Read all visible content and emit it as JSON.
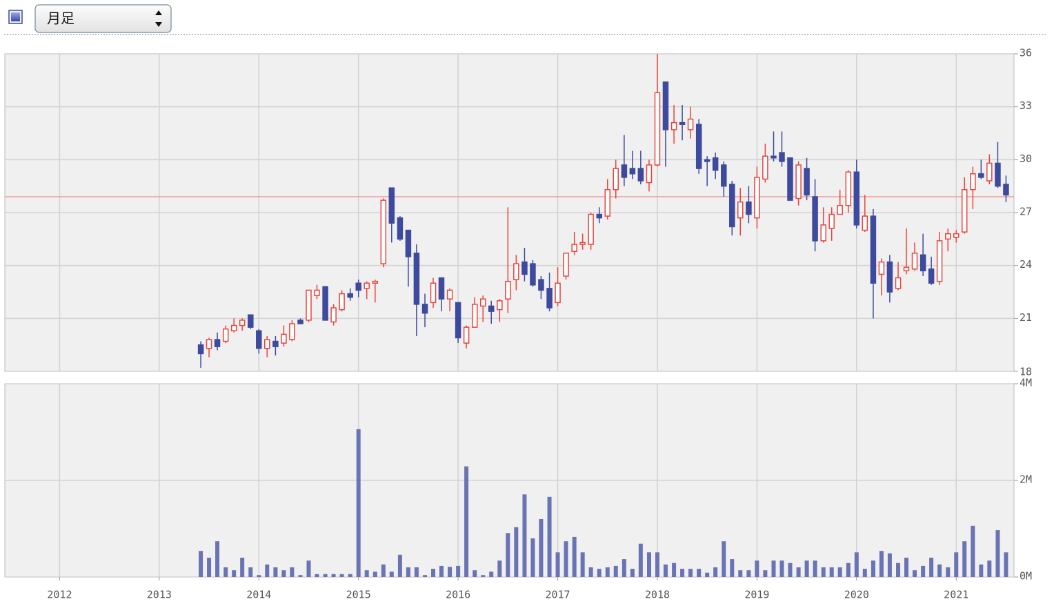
{
  "controls": {
    "period": "月足"
  },
  "chart_data": [
    {
      "type": "candlestick",
      "x": [
        2013.417,
        2013.5,
        2013.583,
        2013.667,
        2013.75,
        2013.833,
        2013.917,
        2014,
        2014.083,
        2014.167,
        2014.25,
        2014.333,
        2014.417,
        2014.5,
        2014.583,
        2014.667,
        2014.75,
        2014.833,
        2014.917,
        2015,
        2015.083,
        2015.167,
        2015.25,
        2015.333,
        2015.417,
        2015.5,
        2015.583,
        2015.667,
        2015.75,
        2015.833,
        2015.917,
        2016,
        2016.083,
        2016.167,
        2016.25,
        2016.333,
        2016.417,
        2016.5,
        2016.583,
        2016.667,
        2016.75,
        2016.833,
        2016.917,
        2017,
        2017.083,
        2017.167,
        2017.25,
        2017.333,
        2017.417,
        2017.5,
        2017.583,
        2017.667,
        2017.75,
        2017.833,
        2017.917,
        2018,
        2018.083,
        2018.167,
        2018.25,
        2018.333,
        2018.417,
        2018.5,
        2018.583,
        2018.667,
        2018.75,
        2018.833,
        2018.917,
        2019,
        2019.083,
        2019.167,
        2019.25,
        2019.333,
        2019.417,
        2019.5,
        2019.583,
        2019.667,
        2019.75,
        2019.833,
        2019.917,
        2020,
        2020.083,
        2020.167,
        2020.25,
        2020.333,
        2020.417,
        2020.5,
        2020.583,
        2020.667,
        2020.75,
        2020.833,
        2020.917,
        2021,
        2021.083,
        2021.167,
        2021.25,
        2021.333,
        2021.417,
        2021.5
      ],
      "open": [
        19.5,
        19.3,
        19.8,
        19.7,
        20.3,
        20.6,
        21.2,
        20.3,
        19.3,
        19.7,
        19.6,
        19.8,
        20.9,
        20.9,
        22.3,
        22.8,
        20.8,
        21.5,
        22.4,
        23.0,
        22.7,
        23.0,
        24.1,
        28.4,
        26.7,
        26.0,
        24.7,
        21.8,
        21.9,
        23.3,
        22.1,
        21.9,
        19.6,
        20.5,
        21.7,
        21.7,
        21.5,
        22.1,
        23.2,
        24.2,
        24.1,
        23.2,
        22.7,
        21.9,
        23.4,
        24.8,
        25.2,
        25.2,
        26.9,
        26.8,
        28.3,
        29.7,
        29.5,
        29.5,
        28.7,
        29.7,
        34.4,
        31.7,
        32.1,
        31.7,
        32.0,
        30.0,
        30.1,
        29.7,
        28.6,
        26.7,
        27.6,
        26.7,
        28.9,
        30.2,
        30.4,
        30.1,
        27.8,
        29.5,
        27.9,
        25.4,
        26.1,
        26.9,
        27.4,
        29.3,
        26.0,
        26.8,
        23.5,
        24.2,
        22.7,
        23.7,
        23.8,
        24.6,
        23.8,
        23.1,
        25.5,
        25.6,
        25.9,
        28.3,
        29.2,
        28.8,
        29.8,
        28.6
      ],
      "high": [
        19.7,
        19.9,
        20.2,
        20.6,
        21.0,
        21.0,
        21.2,
        20.4,
        20.0,
        20.0,
        20.6,
        20.9,
        21.0,
        22.6,
        22.9,
        22.8,
        21.8,
        22.6,
        22.7,
        23.2,
        23.1,
        23.2,
        27.8,
        28.4,
        26.8,
        26.0,
        25.2,
        22.4,
        23.3,
        23.3,
        22.7,
        21.9,
        20.6,
        22.2,
        22.3,
        22.0,
        22.1,
        27.3,
        24.6,
        25.0,
        24.3,
        23.4,
        23.6,
        23.9,
        24.7,
        25.9,
        25.8,
        27.0,
        27.3,
        28.9,
        30.0,
        31.4,
        30.5,
        30.5,
        30.0,
        36.0,
        34.4,
        33.1,
        33.1,
        33.0,
        32.3,
        30.2,
        30.4,
        29.9,
        28.8,
        28.4,
        28.5,
        29.6,
        30.9,
        31.6,
        31.6,
        30.1,
        29.9,
        30.1,
        28.9,
        27.3,
        27.3,
        28.3,
        29.4,
        30.0,
        28.0,
        27.2,
        24.4,
        24.6,
        24.2,
        26.1,
        25.3,
        25.8,
        24.5,
        25.9,
        26.1,
        26.0,
        29.0,
        29.6,
        30.0,
        30.3,
        31.0,
        29.1
      ],
      "low": [
        18.2,
        18.8,
        19.2,
        19.6,
        20.2,
        20.3,
        20.4,
        19.0,
        18.8,
        18.9,
        19.4,
        19.7,
        20.7,
        20.8,
        22.1,
        20.9,
        20.6,
        21.4,
        22.0,
        22.2,
        22.1,
        21.9,
        23.9,
        25.3,
        25.4,
        22.8,
        20.0,
        20.5,
        21.6,
        21.4,
        21.4,
        19.6,
        19.3,
        20.5,
        20.8,
        20.7,
        20.8,
        21.3,
        22.6,
        23.1,
        22.8,
        22.1,
        21.4,
        21.7,
        23.2,
        24.6,
        24.9,
        24.9,
        26.4,
        26.6,
        27.8,
        28.5,
        28.9,
        28.6,
        28.2,
        29.6,
        29.6,
        30.9,
        31.1,
        31.2,
        29.2,
        28.5,
        28.9,
        27.9,
        25.7,
        25.7,
        26.4,
        26.1,
        28.7,
        29.9,
        29.6,
        27.7,
        27.4,
        27.7,
        24.8,
        25.3,
        25.4,
        26.9,
        27.0,
        26.1,
        25.9,
        21.0,
        22.3,
        21.9,
        22.6,
        23.5,
        23.7,
        23.4,
        22.9,
        22.9,
        24.8,
        25.3,
        25.8,
        27.2,
        28.9,
        28.6,
        28.4,
        27.6
      ],
      "close": [
        19.0,
        19.8,
        19.4,
        20.4,
        20.6,
        20.9,
        20.5,
        19.3,
        19.8,
        19.4,
        20.1,
        20.7,
        20.7,
        22.6,
        22.6,
        20.9,
        21.6,
        22.4,
        22.2,
        22.6,
        23.0,
        23.1,
        27.7,
        26.4,
        25.5,
        24.5,
        21.8,
        21.3,
        23.0,
        22.1,
        22.6,
        19.9,
        20.5,
        21.8,
        22.1,
        21.4,
        22.0,
        23.1,
        24.1,
        23.5,
        22.9,
        22.6,
        21.6,
        23.0,
        24.7,
        25.2,
        25.3,
        26.9,
        26.7,
        28.3,
        29.5,
        29.0,
        29.2,
        28.8,
        29.7,
        33.8,
        31.7,
        32.1,
        32.0,
        32.3,
        29.5,
        29.9,
        29.4,
        28.5,
        26.2,
        27.6,
        26.9,
        29.0,
        30.2,
        30.1,
        29.9,
        27.7,
        29.7,
        28.0,
        25.4,
        26.3,
        26.9,
        27.4,
        29.3,
        26.3,
        26.8,
        23.0,
        24.2,
        22.5,
        23.3,
        23.9,
        24.7,
        23.7,
        23.0,
        25.4,
        25.8,
        25.8,
        28.3,
        29.2,
        29.0,
        29.8,
        28.5,
        28.0
      ],
      "up_color": "#e8453c",
      "down_color": "#3d4a9e",
      "reference_line": 27.9,
      "reference_color": "#f09a9a",
      "xlim": [
        2011.45,
        2021.58
      ],
      "xticks": [
        2012,
        2013,
        2014,
        2015,
        2016,
        2017,
        2018,
        2019,
        2020,
        2021
      ],
      "ylim": [
        18,
        36
      ],
      "yticks": [
        18,
        21,
        24,
        27,
        30,
        33,
        36
      ],
      "grid": true
    },
    {
      "type": "bar",
      "values": [
        0.54,
        0.4,
        0.74,
        0.2,
        0.14,
        0.4,
        0.2,
        0.04,
        0.26,
        0.2,
        0.14,
        0.2,
        0.04,
        0.34,
        0.06,
        0.06,
        0.06,
        0.06,
        0.06,
        3.06,
        0.14,
        0.11,
        0.26,
        0.11,
        0.46,
        0.2,
        0.2,
        0.04,
        0.17,
        0.23,
        0.21,
        0.23,
        2.29,
        0.14,
        0.04,
        0.11,
        0.34,
        0.91,
        1.03,
        1.71,
        0.8,
        1.2,
        1.66,
        0.51,
        0.74,
        0.83,
        0.51,
        0.2,
        0.17,
        0.2,
        0.23,
        0.37,
        0.17,
        0.69,
        0.51,
        0.51,
        0.26,
        0.29,
        0.17,
        0.17,
        0.17,
        0.09,
        0.2,
        0.74,
        0.37,
        0.14,
        0.14,
        0.34,
        0.14,
        0.34,
        0.34,
        0.29,
        0.2,
        0.34,
        0.34,
        0.2,
        0.2,
        0.2,
        0.29,
        0.51,
        0.17,
        0.34,
        0.54,
        0.49,
        0.29,
        0.4,
        0.14,
        0.23,
        0.4,
        0.26,
        0.2,
        0.51,
        0.74,
        1.06,
        0.26,
        0.34,
        0.97,
        0.51
      ],
      "color": "#6a73b3",
      "ylim": [
        0,
        4
      ],
      "yticks": [
        {
          "value": 0,
          "label": "0M"
        },
        {
          "value": 2,
          "label": "2M"
        },
        {
          "value": 4,
          "label": "4M"
        }
      ],
      "grid": true
    }
  ]
}
